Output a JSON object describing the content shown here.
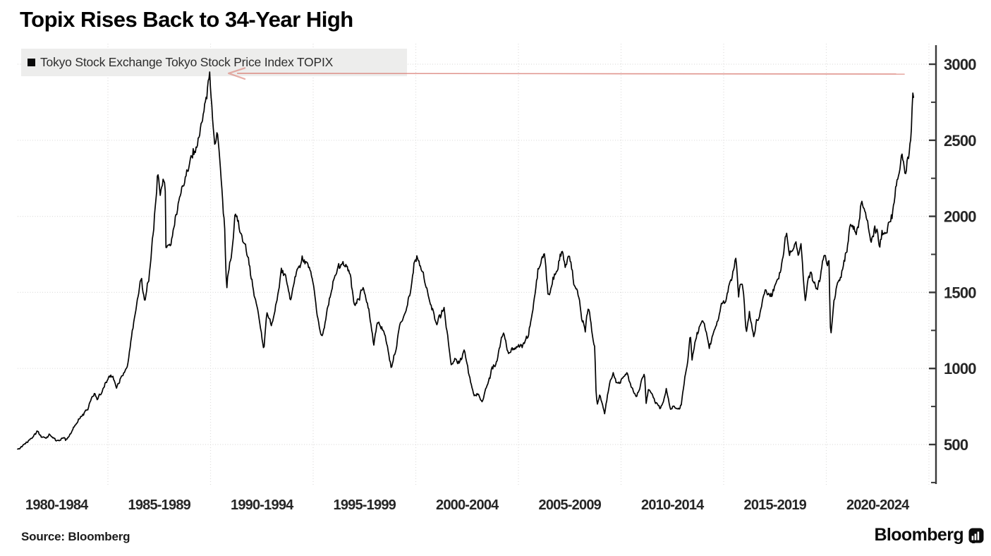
{
  "title": "Topix Rises Back to 34-Year High",
  "legend": {
    "marker": "black-square",
    "label": "Tokyo Stock Exchange Tokyo Stock Price Index TOPIX"
  },
  "source_label": "Source: Bloomberg",
  "brand": {
    "wordmark": "Bloomberg",
    "icon": "bar-chart-terminal-icon"
  },
  "colors": {
    "background": "#ffffff",
    "series_line": "#000000",
    "grid": "#dedddc",
    "axis": "#3a3a3a",
    "tick_label": "#262626",
    "legend_background": "#ededec",
    "legend_text": "#2e2e2e",
    "annotation_arrow": "#d97b72",
    "title": "#000000"
  },
  "chart_data": {
    "type": "line",
    "title": "Topix Rises Back to 34-Year High",
    "series_name": "Tokyo Stock Exchange Tokyo Stock Price Index TOPIX",
    "x_range": [
      1980.6,
      2024.25
    ],
    "ylim_labeled": [
      500,
      3000
    ],
    "y_tick_step": 500,
    "y_minor_tick_step": 250,
    "y_tick_values": [
      500,
      1000,
      1500,
      2000,
      2500,
      3000
    ],
    "y_tick_labels": [
      "500",
      "1000",
      "1500",
      "2000",
      "2500",
      "3000"
    ],
    "y_minor_tick_values": [
      250,
      750,
      1250,
      1750,
      2250,
      2750
    ],
    "x_tick_labels": [
      "1980-1984",
      "1985-1989",
      "1990-1994",
      "1995-1999",
      "2000-2004",
      "2005-2009",
      "2010-2014",
      "2015-2019",
      "2020-2024"
    ],
    "x_tick_label_center_years": [
      1982.5,
      1987.5,
      1992.5,
      1997.5,
      2002.5,
      2007.5,
      2012.5,
      2017.5,
      2022.5
    ],
    "x_gridline_years": [
      1985,
      1990,
      1995,
      2000,
      2005,
      2010,
      2015,
      2020,
      2025
    ],
    "grid": true,
    "legend_position": "top-left",
    "annotation": {
      "type": "arrow",
      "note": "arrow from the 2024 high pointing left back to the 1989 record level",
      "y_value": 2940,
      "from_year": 2023.82,
      "to_year": 1990.88
    },
    "anchors": [
      [
        1980.6,
        470
      ],
      [
        1980.85,
        500
      ],
      [
        1981.1,
        532
      ],
      [
        1981.35,
        575
      ],
      [
        1981.6,
        605
      ],
      [
        1981.78,
        558
      ],
      [
        1981.95,
        545
      ],
      [
        1982.12,
        568
      ],
      [
        1982.35,
        542
      ],
      [
        1982.6,
        514
      ],
      [
        1982.78,
        546
      ],
      [
        1982.95,
        528
      ],
      [
        1983.2,
        572
      ],
      [
        1983.5,
        642
      ],
      [
        1983.8,
        692
      ],
      [
        1984.05,
        735
      ],
      [
        1984.35,
        852
      ],
      [
        1984.52,
        806
      ],
      [
        1984.75,
        868
      ],
      [
        1985.0,
        916
      ],
      [
        1985.2,
        948
      ],
      [
        1985.42,
        878
      ],
      [
        1985.7,
        952
      ],
      [
        1985.95,
        1032
      ],
      [
        1986.2,
        1232
      ],
      [
        1986.45,
        1472
      ],
      [
        1986.62,
        1578
      ],
      [
        1986.8,
        1438
      ],
      [
        1987.0,
        1602
      ],
      [
        1987.2,
        1878
      ],
      [
        1987.42,
        2248
      ],
      [
        1987.55,
        2128
      ],
      [
        1987.7,
        2238
      ],
      [
        1987.79,
        2212
      ],
      [
        1987.83,
        1792
      ],
      [
        1987.95,
        1878
      ],
      [
        1988.1,
        1872
      ],
      [
        1988.4,
        2082
      ],
      [
        1988.7,
        2188
      ],
      [
        1989.0,
        2358
      ],
      [
        1989.35,
        2482
      ],
      [
        1989.6,
        2622
      ],
      [
        1989.8,
        2724
      ],
      [
        1989.96,
        2878
      ],
      [
        1990.08,
        2682
      ],
      [
        1990.2,
        2456
      ],
      [
        1990.33,
        2558
      ],
      [
        1990.55,
        2224
      ],
      [
        1990.68,
        1962
      ],
      [
        1990.78,
        1556
      ],
      [
        1990.9,
        1682
      ],
      [
        1991.05,
        1772
      ],
      [
        1991.2,
        2022
      ],
      [
        1991.45,
        1872
      ],
      [
        1991.7,
        1782
      ],
      [
        1991.9,
        1642
      ],
      [
        1992.1,
        1482
      ],
      [
        1992.35,
        1302
      ],
      [
        1992.6,
        1108
      ],
      [
        1992.75,
        1362
      ],
      [
        1992.95,
        1282
      ],
      [
        1993.2,
        1422
      ],
      [
        1993.45,
        1662
      ],
      [
        1993.65,
        1608
      ],
      [
        1993.9,
        1432
      ],
      [
        1994.1,
        1582
      ],
      [
        1994.45,
        1702
      ],
      [
        1994.75,
        1642
      ],
      [
        1995.0,
        1538
      ],
      [
        1995.2,
        1318
      ],
      [
        1995.45,
        1196
      ],
      [
        1995.7,
        1402
      ],
      [
        1995.95,
        1558
      ],
      [
        1996.2,
        1662
      ],
      [
        1996.45,
        1712
      ],
      [
        1996.75,
        1618
      ],
      [
        1997.0,
        1402
      ],
      [
        1997.2,
        1432
      ],
      [
        1997.45,
        1552
      ],
      [
        1997.7,
        1418
      ],
      [
        1997.95,
        1172
      ],
      [
        1998.15,
        1322
      ],
      [
        1998.4,
        1268
      ],
      [
        1998.6,
        1182
      ],
      [
        1998.8,
        1002
      ],
      [
        1999.0,
        1122
      ],
      [
        1999.25,
        1292
      ],
      [
        1999.5,
        1378
      ],
      [
        1999.75,
        1522
      ],
      [
        1999.95,
        1692
      ],
      [
        2000.1,
        1748
      ],
      [
        2000.3,
        1632
      ],
      [
        2000.55,
        1528
      ],
      [
        2000.8,
        1422
      ],
      [
        2001.0,
        1312
      ],
      [
        2001.2,
        1362
      ],
      [
        2001.38,
        1432
      ],
      [
        2001.55,
        1232
      ],
      [
        2001.72,
        1002
      ],
      [
        2001.9,
        1072
      ],
      [
        2002.1,
        1058
      ],
      [
        2002.35,
        1128
      ],
      [
        2002.6,
        958
      ],
      [
        2002.85,
        832
      ],
      [
        2003.05,
        828
      ],
      [
        2003.22,
        772
      ],
      [
        2003.45,
        878
      ],
      [
        2003.7,
        988
      ],
      [
        2003.95,
        1042
      ],
      [
        2004.25,
        1208
      ],
      [
        2004.5,
        1108
      ],
      [
        2004.75,
        1128
      ],
      [
        2005.0,
        1158
      ],
      [
        2005.25,
        1152
      ],
      [
        2005.5,
        1232
      ],
      [
        2005.75,
        1412
      ],
      [
        2005.95,
        1632
      ],
      [
        2006.1,
        1702
      ],
      [
        2006.28,
        1772
      ],
      [
        2006.45,
        1472
      ],
      [
        2006.65,
        1562
      ],
      [
        2006.85,
        1632
      ],
      [
        2007.0,
        1722
      ],
      [
        2007.13,
        1808
      ],
      [
        2007.3,
        1692
      ],
      [
        2007.45,
        1778
      ],
      [
        2007.6,
        1682
      ],
      [
        2007.75,
        1542
      ],
      [
        2007.95,
        1482
      ],
      [
        2008.1,
        1322
      ],
      [
        2008.25,
        1262
      ],
      [
        2008.42,
        1422
      ],
      [
        2008.6,
        1262
      ],
      [
        2008.72,
        1172
      ],
      [
        2008.79,
        862
      ],
      [
        2008.86,
        792
      ],
      [
        2008.95,
        852
      ],
      [
        2009.1,
        782
      ],
      [
        2009.2,
        712
      ],
      [
        2009.35,
        822
      ],
      [
        2009.5,
        912
      ],
      [
        2009.62,
        962
      ],
      [
        2009.8,
        892
      ],
      [
        2009.95,
        912
      ],
      [
        2010.1,
        942
      ],
      [
        2010.28,
        982
      ],
      [
        2010.45,
        892
      ],
      [
        2010.6,
        852
      ],
      [
        2010.75,
        822
      ],
      [
        2010.9,
        872
      ],
      [
        2011.05,
        922
      ],
      [
        2011.15,
        962
      ],
      [
        2011.22,
        772
      ],
      [
        2011.32,
        852
      ],
      [
        2011.45,
        842
      ],
      [
        2011.6,
        792
      ],
      [
        2011.75,
        762
      ],
      [
        2011.9,
        722
      ],
      [
        2012.05,
        762
      ],
      [
        2012.2,
        858
      ],
      [
        2012.42,
        698
      ],
      [
        2012.55,
        742
      ],
      [
        2012.7,
        732
      ],
      [
        2012.85,
        726
      ],
      [
        2012.95,
        772
      ],
      [
        2013.1,
        942
      ],
      [
        2013.25,
        1082
      ],
      [
        2013.38,
        1262
      ],
      [
        2013.46,
        1082
      ],
      [
        2013.6,
        1162
      ],
      [
        2013.8,
        1232
      ],
      [
        2013.97,
        1298
      ],
      [
        2014.1,
        1262
      ],
      [
        2014.3,
        1142
      ],
      [
        2014.5,
        1232
      ],
      [
        2014.7,
        1292
      ],
      [
        2014.9,
        1402
      ],
      [
        2015.05,
        1412
      ],
      [
        2015.3,
        1542
      ],
      [
        2015.5,
        1632
      ],
      [
        2015.6,
        1692
      ],
      [
        2015.72,
        1432
      ],
      [
        2015.85,
        1552
      ],
      [
        2015.95,
        1512
      ],
      [
        2016.1,
        1206
      ],
      [
        2016.25,
        1362
      ],
      [
        2016.32,
        1302
      ],
      [
        2016.47,
        1202
      ],
      [
        2016.6,
        1302
      ],
      [
        2016.75,
        1332
      ],
      [
        2016.9,
        1472
      ],
      [
        2017.05,
        1522
      ],
      [
        2017.2,
        1512
      ],
      [
        2017.35,
        1492
      ],
      [
        2017.5,
        1562
      ],
      [
        2017.65,
        1622
      ],
      [
        2017.8,
        1682
      ],
      [
        2017.95,
        1802
      ],
      [
        2018.06,
        1906
      ],
      [
        2018.2,
        1722
      ],
      [
        2018.35,
        1742
      ],
      [
        2018.5,
        1782
      ],
      [
        2018.65,
        1732
      ],
      [
        2018.78,
        1822
      ],
      [
        2018.9,
        1562
      ],
      [
        2018.98,
        1432
      ],
      [
        2019.1,
        1592
      ],
      [
        2019.25,
        1632
      ],
      [
        2019.4,
        1582
      ],
      [
        2019.55,
        1522
      ],
      [
        2019.65,
        1562
      ],
      [
        2019.8,
        1642
      ],
      [
        2019.95,
        1736
      ],
      [
        2020.05,
        1702
      ],
      [
        2020.13,
        1732
      ],
      [
        2020.21,
        1208
      ],
      [
        2020.35,
        1422
      ],
      [
        2020.5,
        1562
      ],
      [
        2020.62,
        1582
      ],
      [
        2020.75,
        1622
      ],
      [
        2020.9,
        1722
      ],
      [
        2021.05,
        1852
      ],
      [
        2021.15,
        1952
      ],
      [
        2021.3,
        1962
      ],
      [
        2021.45,
        1912
      ],
      [
        2021.58,
        1932
      ],
      [
        2021.7,
        2072
      ],
      [
        2021.8,
        2032
      ],
      [
        2021.95,
        1992
      ],
      [
        2022.1,
        1902
      ],
      [
        2022.2,
        1822
      ],
      [
        2022.35,
        1932
      ],
      [
        2022.5,
        1872
      ],
      [
        2022.6,
        1832
      ],
      [
        2022.72,
        1932
      ],
      [
        2022.85,
        1872
      ],
      [
        2022.95,
        1892
      ],
      [
        2023.1,
        1972
      ],
      [
        2023.2,
        2002
      ],
      [
        2023.35,
        2132
      ],
      [
        2023.45,
        2252
      ],
      [
        2023.55,
        2292
      ],
      [
        2023.68,
        2412
      ],
      [
        2023.78,
        2302
      ],
      [
        2023.85,
        2252
      ],
      [
        2023.95,
        2352
      ],
      [
        2024.02,
        2382
      ],
      [
        2024.08,
        2462
      ],
      [
        2024.13,
        2562
      ],
      [
        2024.17,
        2682
      ],
      [
        2024.21,
        2812
      ],
      [
        2024.25,
        2782
      ]
    ],
    "noise": {
      "seed": 13,
      "slow_step_pct": 0.022,
      "slow_persist": 0.88,
      "fast_step_pct": 0.014
    },
    "samples": 1250
  }
}
